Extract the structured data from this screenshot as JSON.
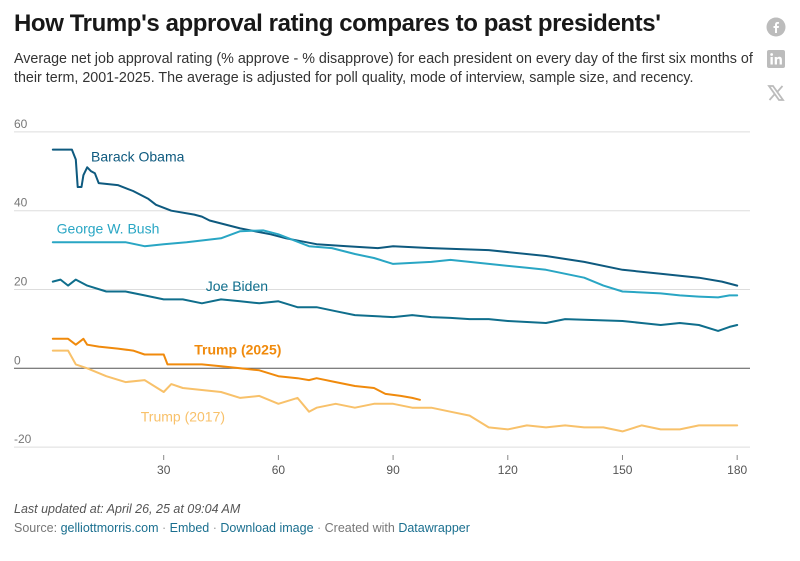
{
  "title": "How Trump's approval rating compares to past presidents'",
  "subtitle": "Average net job approval rating (% approve - % disapprove) for each president on every day of the first six months of their term, 2001-2025. The average is adjusted for poll quality, mode of interview, sample size, and recency.",
  "share": {
    "icons": [
      "facebook-icon",
      "linkedin-icon",
      "x-icon"
    ]
  },
  "footer": {
    "updated": "Last updated at: April 26, 25 at 09:04 AM",
    "source_label": "Source:",
    "source_link": "gelliottmorris.com",
    "sep": "·",
    "embed": "Embed",
    "download": "Download image",
    "created": "Created with",
    "tool": "Datawrapper"
  },
  "colors": {
    "obama": "#0e5a7f",
    "bush": "#29a6c4",
    "biden": "#0f6e8c",
    "trump2025": "#f08a0c",
    "trump2017": "#f8c16a",
    "grid": "#dddddd",
    "zero": "#555555"
  },
  "chart_data": {
    "type": "line",
    "xlim": [
      0,
      181
    ],
    "ylim": [
      -22,
      62
    ],
    "xticks": [
      30,
      60,
      90,
      120,
      150,
      180
    ],
    "yticks": [
      -20,
      0,
      20,
      40,
      60
    ],
    "xlabel": "",
    "ylabel": "",
    "grid": "horizontal",
    "series": [
      {
        "name": "Barack Obama",
        "key": "obama",
        "label_at": [
          11,
          52.5
        ],
        "points": [
          [
            1,
            55.5
          ],
          [
            6,
            55.5
          ],
          [
            7,
            53
          ],
          [
            7.5,
            46
          ],
          [
            8.5,
            46
          ],
          [
            9,
            49
          ],
          [
            10,
            51
          ],
          [
            11,
            50
          ],
          [
            12,
            49.5
          ],
          [
            13,
            47
          ],
          [
            18,
            46.5
          ],
          [
            22,
            45
          ],
          [
            26,
            43
          ],
          [
            28,
            41.5
          ],
          [
            32,
            40
          ],
          [
            38,
            39
          ],
          [
            40,
            38.5
          ],
          [
            42,
            37.5
          ],
          [
            50,
            35.5
          ],
          [
            58,
            34
          ],
          [
            62,
            33
          ],
          [
            70,
            31.5
          ],
          [
            78,
            31
          ],
          [
            86,
            30.5
          ],
          [
            90,
            31
          ],
          [
            100,
            30.5
          ],
          [
            115,
            30
          ],
          [
            130,
            28.5
          ],
          [
            140,
            27
          ],
          [
            150,
            25
          ],
          [
            160,
            24
          ],
          [
            170,
            23
          ],
          [
            176,
            22
          ],
          [
            180,
            21
          ]
        ]
      },
      {
        "name": "George W. Bush",
        "key": "bush",
        "label_at": [
          2,
          34.2
        ],
        "points": [
          [
            1,
            32
          ],
          [
            10,
            32
          ],
          [
            20,
            32
          ],
          [
            25,
            31
          ],
          [
            30,
            31.5
          ],
          [
            36,
            32
          ],
          [
            45,
            33
          ],
          [
            50,
            34.8
          ],
          [
            56,
            35
          ],
          [
            60,
            34
          ],
          [
            68,
            31
          ],
          [
            74,
            30.5
          ],
          [
            80,
            29
          ],
          [
            85,
            28
          ],
          [
            90,
            26.5
          ],
          [
            100,
            27
          ],
          [
            105,
            27.5
          ],
          [
            115,
            26.5
          ],
          [
            125,
            25.5
          ],
          [
            130,
            25
          ],
          [
            140,
            23
          ],
          [
            145,
            21
          ],
          [
            150,
            19.5
          ],
          [
            160,
            19
          ],
          [
            165,
            18.5
          ],
          [
            170,
            18.2
          ],
          [
            175,
            18
          ],
          [
            178,
            18.5
          ],
          [
            180,
            18.5
          ]
        ]
      },
      {
        "name": "Joe Biden",
        "key": "biden",
        "label_at": [
          41,
          19.6
        ],
        "points": [
          [
            1,
            22
          ],
          [
            3,
            22.5
          ],
          [
            5,
            21
          ],
          [
            7,
            22.5
          ],
          [
            10,
            21
          ],
          [
            15,
            19.5
          ],
          [
            20,
            19.5
          ],
          [
            25,
            18.5
          ],
          [
            30,
            17.5
          ],
          [
            35,
            17.5
          ],
          [
            40,
            16.5
          ],
          [
            45,
            17.5
          ],
          [
            50,
            17
          ],
          [
            55,
            16.5
          ],
          [
            60,
            17
          ],
          [
            65,
            15.5
          ],
          [
            70,
            15.5
          ],
          [
            75,
            14.5
          ],
          [
            80,
            13.5
          ],
          [
            90,
            13
          ],
          [
            95,
            13.5
          ],
          [
            100,
            13
          ],
          [
            105,
            12.8
          ],
          [
            110,
            12.5
          ],
          [
            115,
            12.5
          ],
          [
            120,
            12
          ],
          [
            130,
            11.5
          ],
          [
            135,
            12.5
          ],
          [
            140,
            12.3
          ],
          [
            150,
            12
          ],
          [
            155,
            11.5
          ],
          [
            160,
            11
          ],
          [
            165,
            11.5
          ],
          [
            170,
            11
          ],
          [
            175,
            9.5
          ],
          [
            178,
            10.5
          ],
          [
            180,
            11
          ]
        ]
      },
      {
        "name": "Trump (2025)",
        "key": "trump2025",
        "label_at": [
          38,
          3.5
        ],
        "points": [
          [
            1,
            7.5
          ],
          [
            5,
            7.5
          ],
          [
            7,
            6
          ],
          [
            9,
            7.5
          ],
          [
            10,
            6
          ],
          [
            13,
            5.5
          ],
          [
            18,
            5
          ],
          [
            22,
            4.5
          ],
          [
            25,
            3.5
          ],
          [
            30,
            3.5
          ],
          [
            31,
            1
          ],
          [
            35,
            1
          ],
          [
            40,
            1
          ],
          [
            45,
            0.5
          ],
          [
            50,
            0
          ],
          [
            55,
            -0.5
          ],
          [
            60,
            -2
          ],
          [
            65,
            -2.5
          ],
          [
            68,
            -3
          ],
          [
            70,
            -2.5
          ],
          [
            75,
            -3.5
          ],
          [
            80,
            -4.5
          ],
          [
            85,
            -5
          ],
          [
            88,
            -6.5
          ],
          [
            92,
            -7
          ],
          [
            95,
            -7.5
          ],
          [
            97,
            -8
          ]
        ]
      },
      {
        "name": "Trump (2017)",
        "key": "trump2017",
        "label_at": [
          24,
          -13.5
        ],
        "points": [
          [
            1,
            4.5
          ],
          [
            5,
            4.5
          ],
          [
            7,
            1
          ],
          [
            10,
            0
          ],
          [
            15,
            -2
          ],
          [
            20,
            -3.5
          ],
          [
            25,
            -3
          ],
          [
            30,
            -6
          ],
          [
            32,
            -4
          ],
          [
            35,
            -5
          ],
          [
            40,
            -5.5
          ],
          [
            45,
            -6
          ],
          [
            50,
            -7.5
          ],
          [
            55,
            -7
          ],
          [
            60,
            -9
          ],
          [
            65,
            -7.5
          ],
          [
            68,
            -11
          ],
          [
            70,
            -10
          ],
          [
            75,
            -9
          ],
          [
            80,
            -10
          ],
          [
            85,
            -9
          ],
          [
            90,
            -9
          ],
          [
            95,
            -10
          ],
          [
            100,
            -10
          ],
          [
            105,
            -11
          ],
          [
            110,
            -12
          ],
          [
            115,
            -15
          ],
          [
            120,
            -15.5
          ],
          [
            125,
            -14.5
          ],
          [
            130,
            -15
          ],
          [
            135,
            -14.5
          ],
          [
            140,
            -15
          ],
          [
            145,
            -15
          ],
          [
            150,
            -16
          ],
          [
            155,
            -14.5
          ],
          [
            160,
            -15.5
          ],
          [
            165,
            -15.5
          ],
          [
            170,
            -14.5
          ],
          [
            175,
            -14.5
          ],
          [
            180,
            -14.5
          ]
        ]
      }
    ]
  }
}
